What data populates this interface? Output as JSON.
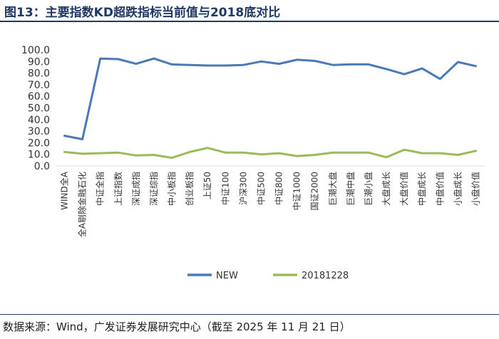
{
  "title": "图13：主要指数KD超跌指标当前值与2018底对比",
  "source": "数据来源：Wind，广发证券发展研究中心（截至 2025 年 11 月 21 日）",
  "chart_data": {
    "type": "line",
    "categories": [
      "WIND全A",
      "全A剔除金融石化",
      "中证全指",
      "上证指数",
      "深证成指",
      "深证综指",
      "中小板指",
      "创业板指",
      "上证50",
      "中证100",
      "沪深300",
      "中证500",
      "中证800",
      "中证1000",
      "国证2000",
      "巨潮大盘",
      "巨潮中盘",
      "巨潮小盘",
      "大盘成长",
      "大盘价值",
      "中盘成长",
      "中盘价值",
      "小盘成长",
      "小盘价值"
    ],
    "series": [
      {
        "name": "NEW",
        "color": "#4a79b8",
        "values": [
          26.0,
          23.0,
          92.5,
          92.0,
          88.0,
          92.5,
          87.5,
          87.0,
          86.5,
          86.5,
          87.0,
          90.0,
          88.0,
          91.5,
          90.5,
          87.0,
          87.5,
          87.5,
          83.5,
          79.0,
          84.0,
          75.0,
          89.5,
          86.0
        ]
      },
      {
        "name": "20181228",
        "color": "#9bbb59",
        "values": [
          12.0,
          10.5,
          11.0,
          11.5,
          9.0,
          9.5,
          7.0,
          12.0,
          15.5,
          11.5,
          11.5,
          10.0,
          11.0,
          8.5,
          9.5,
          11.5,
          11.5,
          11.5,
          7.5,
          14.0,
          11.0,
          11.0,
          9.5,
          13.0
        ]
      }
    ],
    "ylim": [
      0,
      100
    ],
    "yticks": [
      "0.0",
      "10.0",
      "20.0",
      "30.0",
      "40.0",
      "50.0",
      "60.0",
      "70.0",
      "80.0",
      "90.0",
      "100.0"
    ],
    "legend": "bottom",
    "grid": false
  }
}
